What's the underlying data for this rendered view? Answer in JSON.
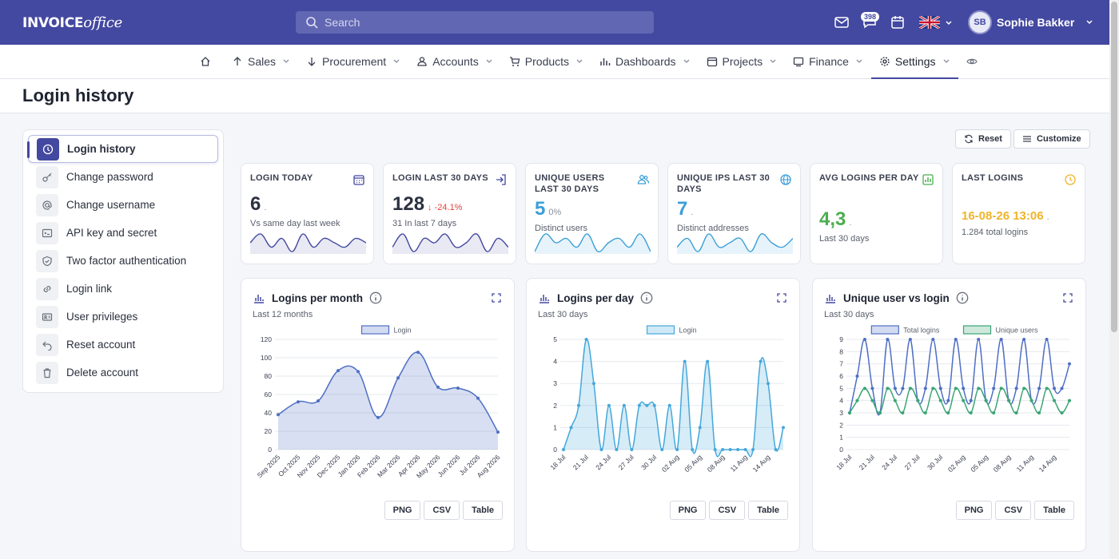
{
  "app": {
    "logo_main": "INVOICE",
    "logo_sub": "office"
  },
  "search": {
    "placeholder": "Search"
  },
  "notifications": {
    "count": "398"
  },
  "user": {
    "initials": "SB",
    "name": "Sophie Bakker"
  },
  "nav": [
    {
      "label": "Sales",
      "icon": "arrow-up-icon"
    },
    {
      "label": "Procurement",
      "icon": "arrow-down-icon"
    },
    {
      "label": "Accounts",
      "icon": "user-icon"
    },
    {
      "label": "Products",
      "icon": "cart-icon"
    },
    {
      "label": "Dashboards",
      "icon": "bar-chart-icon"
    },
    {
      "label": "Projects",
      "icon": "calendar-icon"
    },
    {
      "label": "Finance",
      "icon": "monitor-icon"
    },
    {
      "label": "Settings",
      "icon": "gear-icon",
      "active": true
    }
  ],
  "page": {
    "title": "Login history"
  },
  "sidebar": {
    "items": [
      {
        "label": "Login history",
        "icon": "clock-icon",
        "active": true
      },
      {
        "label": "Change password",
        "icon": "key-icon"
      },
      {
        "label": "Change username",
        "icon": "at-icon"
      },
      {
        "label": "API key and secret",
        "icon": "code-icon"
      },
      {
        "label": "Two factor authentication",
        "icon": "shield-icon"
      },
      {
        "label": "Login link",
        "icon": "link-icon"
      },
      {
        "label": "User privileges",
        "icon": "id-card-icon"
      },
      {
        "label": "Reset account",
        "icon": "undo-icon"
      },
      {
        "label": "Delete account",
        "icon": "trash-icon"
      }
    ]
  },
  "actions": {
    "reset": "Reset",
    "customize": "Customize"
  },
  "stats": [
    {
      "title": "LOGIN TODAY",
      "value": "6",
      "delta": ".",
      "sub": "Vs same day last week",
      "icon": "calendar-icon",
      "color": "#4348a0",
      "spark": [
        3,
        5,
        2,
        4,
        1,
        5,
        2,
        4,
        3,
        2,
        4,
        3
      ]
    },
    {
      "title": "LOGIN LAST 30 DAYS",
      "value": "128",
      "delta": "-24.1%",
      "delta_neg": true,
      "sub": "31 In last 7 days",
      "icon": "login-icon",
      "color": "#4348a0",
      "spark": [
        2,
        5,
        1,
        4,
        3,
        5,
        2,
        3,
        5,
        1,
        4,
        2
      ]
    },
    {
      "title": "UNIQUE USERS LAST 30 DAYS",
      "value": "5",
      "delta": "0%",
      "sub": "Distinct users",
      "icon": "users-icon",
      "color": "#3b9fd8",
      "spark": [
        1,
        5,
        3,
        4,
        2,
        5,
        1,
        3,
        4,
        2,
        5,
        1
      ]
    },
    {
      "title": "UNIQUE IPS LAST 30 DAYS",
      "value": "7",
      "delta": ".",
      "sub": "Distinct addresses",
      "icon": "globe-icon",
      "color": "#3b9fd8",
      "spark": [
        2,
        4,
        1,
        5,
        2,
        3,
        4,
        1,
        5,
        3,
        2,
        4
      ]
    },
    {
      "title": "AVG LOGINS PER DAY",
      "value": "4,3",
      "delta": ".",
      "sub": "Last 30 days",
      "icon": "chart-icon",
      "color": "#4cae4f"
    },
    {
      "title": "LAST LOGINS",
      "value": "16-08-26 13:06",
      "delta": ".",
      "sub": "1.284 total logins",
      "icon": "clock-icon",
      "color": "#f0b429"
    }
  ],
  "chart_data": [
    {
      "type": "area",
      "title": "Logins per month",
      "subtitle": "Last 12 months",
      "categories": [
        "Sep 2025",
        "Oct 2025",
        "Nov 2025",
        "Dec 2025",
        "Jan 2026",
        "Feb 2026",
        "Mar 2026",
        "Apr 2026",
        "May 2026",
        "Jun 2026",
        "Jul 2026",
        "Aug 2026"
      ],
      "series": [
        {
          "name": "Login",
          "values": [
            38,
            52,
            53,
            86,
            85,
            35,
            78,
            106,
            68,
            67,
            56,
            19
          ],
          "color": "#4f6fc4"
        }
      ],
      "ylim": [
        0,
        120
      ],
      "yticks": [
        0,
        20,
        40,
        60,
        80,
        100,
        120
      ],
      "grid": true,
      "legend": "top"
    },
    {
      "type": "area",
      "title": "Logins per day",
      "subtitle": "Last 30 days",
      "categories": [
        "18 Jul",
        "19 Jul",
        "20 Jul",
        "21 Jul",
        "22 Jul",
        "23 Jul",
        "24 Jul",
        "25 Jul",
        "26 Jul",
        "27 Jul",
        "28 Jul",
        "29 Jul",
        "30 Jul",
        "31 Jul",
        "01 Aug",
        "02 Aug",
        "03 Aug",
        "04 Aug",
        "05 Aug",
        "06 Aug",
        "07 Aug",
        "08 Aug",
        "09 Aug",
        "10 Aug",
        "11 Aug",
        "12 Aug",
        "13 Aug",
        "14 Aug",
        "15 Aug",
        "16 Aug"
      ],
      "xticks": [
        "18 Jul",
        "21 Jul",
        "24 Jul",
        "27 Jul",
        "30 Jul",
        "02 Aug",
        "05 Aug",
        "08 Aug",
        "11 Aug",
        "14 Aug"
      ],
      "series": [
        {
          "name": "Login",
          "values": [
            0,
            1,
            2,
            5,
            3,
            0,
            2,
            0,
            2,
            0,
            2,
            2,
            2,
            0,
            2,
            0,
            4,
            0,
            1,
            4,
            0,
            0,
            0,
            0,
            0,
            0,
            4,
            3,
            0,
            1
          ],
          "color": "#45a8db"
        }
      ],
      "ylim": [
        0,
        5
      ],
      "yticks": [
        0,
        1,
        2,
        3,
        4,
        5
      ],
      "grid": true,
      "legend": "top"
    },
    {
      "type": "line",
      "title": "Unique user vs login",
      "subtitle": "Last 30 days",
      "categories": [
        "18 Jul",
        "19 Jul",
        "20 Jul",
        "21 Jul",
        "22 Jul",
        "23 Jul",
        "24 Jul",
        "25 Jul",
        "26 Jul",
        "27 Jul",
        "28 Jul",
        "29 Jul",
        "30 Jul",
        "31 Jul",
        "01 Aug",
        "02 Aug",
        "03 Aug",
        "04 Aug",
        "05 Aug",
        "06 Aug",
        "07 Aug",
        "08 Aug",
        "09 Aug",
        "10 Aug",
        "11 Aug",
        "12 Aug",
        "13 Aug",
        "14 Aug",
        "15 Aug",
        "16 Aug"
      ],
      "xticks": [
        "18 Jul",
        "21 Jul",
        "24 Jul",
        "27 Jul",
        "30 Jul",
        "02 Aug",
        "05 Aug",
        "08 Aug",
        "11 Aug",
        "14 Aug"
      ],
      "series": [
        {
          "name": "Total logins",
          "values": [
            3,
            6,
            9,
            5,
            3,
            9,
            5,
            5,
            9,
            4,
            5,
            9,
            5,
            4,
            9,
            5,
            4,
            9,
            4,
            5,
            9,
            4,
            5,
            9,
            4,
            5,
            9,
            5,
            5,
            7
          ],
          "color": "#4f6fc4"
        },
        {
          "name": "Unique users",
          "values": [
            3,
            4,
            5,
            4,
            3,
            5,
            4,
            3,
            5,
            4,
            3,
            5,
            4,
            3,
            5,
            4,
            3,
            5,
            4,
            3,
            5,
            4,
            3,
            5,
            4,
            3,
            5,
            4,
            3,
            4
          ],
          "color": "#3aa574"
        }
      ],
      "ylim": [
        0,
        9
      ],
      "yticks": [
        0,
        1,
        2,
        3,
        4,
        5,
        6,
        7,
        8,
        9
      ],
      "grid": true,
      "legend": "top"
    }
  ],
  "chart_buttons": {
    "png": "PNG",
    "csv": "CSV",
    "table": "Table"
  }
}
